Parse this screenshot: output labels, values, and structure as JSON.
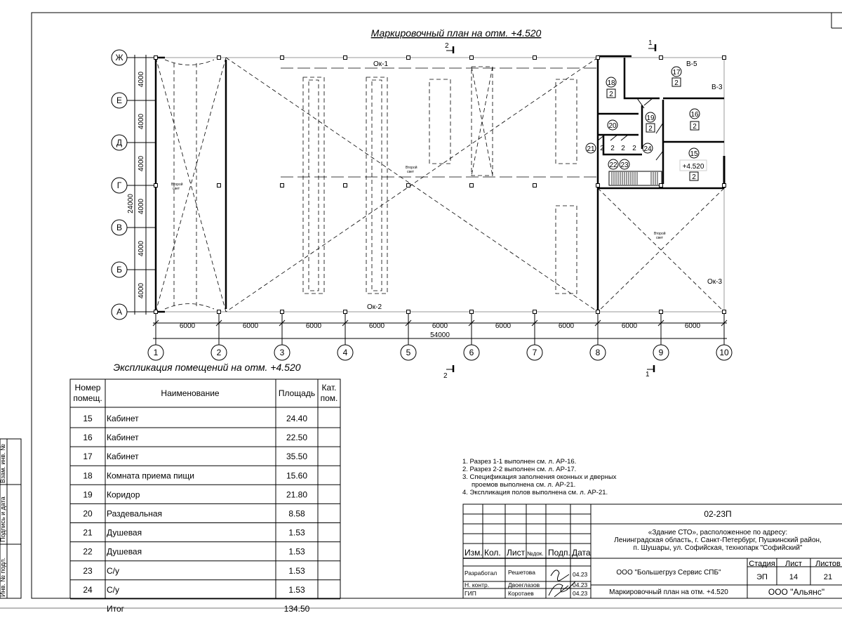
{
  "plan": {
    "title": "Маркировочный план на отм. +4.520",
    "row_axes": [
      "Ж",
      "Е",
      "Д",
      "Г",
      "В",
      "Б",
      "А"
    ],
    "column_axes": [
      "1",
      "2",
      "3",
      "4",
      "5",
      "6",
      "7",
      "8",
      "9",
      "10"
    ],
    "span_dimension": "6000",
    "total_width": "54000",
    "row_dimension": "4000",
    "total_height": "24000",
    "section_marks": [
      "2",
      "1"
    ],
    "labels": {
      "ok1": "Ок-1",
      "ok2": "Ок-2",
      "ok3": "Ок-3",
      "v5": "В-5",
      "v3": "В-3",
      "second_light_line1": "Второй",
      "second_light_line2": "свет",
      "elevation": "+4.520",
      "floor_type": "2"
    },
    "room_numbers": [
      "15",
      "16",
      "17",
      "18",
      "19",
      "20",
      "21",
      "22",
      "23",
      "24"
    ]
  },
  "explication": {
    "title": "Экспликация помещений на отм. +4.520",
    "headers": {
      "number_l1": "Номер",
      "number_l2": "помещ.",
      "name": "Наименование",
      "area": "Площадь",
      "cat_l1": "Кат.",
      "cat_l2": "пом."
    },
    "rows": [
      {
        "number": "15",
        "name": "Кабинет",
        "area": "24.40"
      },
      {
        "number": "16",
        "name": "Кабинет",
        "area": "22.50"
      },
      {
        "number": "17",
        "name": "Кабинет",
        "area": "35.50"
      },
      {
        "number": "18",
        "name": "Комната приема пищи",
        "area": "15.60"
      },
      {
        "number": "19",
        "name": "Коридор",
        "area": "21.80"
      },
      {
        "number": "20",
        "name": "Раздевальная",
        "area": "8.58"
      },
      {
        "number": "21",
        "name": "Душевая",
        "area": "1.53"
      },
      {
        "number": "22",
        "name": "Душевая",
        "area": "1.53"
      },
      {
        "number": "23",
        "name": "С/у",
        "area": "1.53"
      },
      {
        "number": "24",
        "name": "С/у",
        "area": "1.53"
      }
    ],
    "total_label": "Итог",
    "total_area": "134.50"
  },
  "notes": [
    "1. Разрез 1-1 выполнен см. л. АР-16.",
    "2. Разрез 2-2 выполнен см. л. АР-17.",
    "3. Спецификация заполнения оконных и дверных",
    "проемов выполнена см. л. АР-21.",
    "4. Экспликация полов выполнена см. л. АР-21."
  ],
  "title_block": {
    "code": "02-23П",
    "object_l1": "«Здание СТО», расположенное по адресу:",
    "object_l2": "Ленинградская область, г. Санкт-Петербург, Пушкинский район,",
    "object_l3": "п. Шушары, ул. Софийская, технопарк \"Софийский\"",
    "headers": [
      "Изм.",
      "Кол.",
      "Лист",
      "№док.",
      "Подп.",
      "Дата"
    ],
    "designer_role": "Разработал",
    "designer_name": "Решетова",
    "designer_date": "04.23",
    "norm_role": "Н. контр.",
    "norm_name": "Двоеглазов",
    "norm_date": "04.23",
    "chief_role": "ГИП",
    "chief_name": "Коротаев",
    "chief_date": "04.23",
    "company": "ООО \"Большегруз Сервис СПБ\"",
    "stage_label": "Стадия",
    "sheet_label": "Лист",
    "sheets_label": "Листов",
    "stage": "ЭП",
    "sheet": "14",
    "sheets": "21",
    "sheet_title": "Маркировочный план на отм. +4.520",
    "organization": "ООО \"Альянс\""
  },
  "side_stamp": [
    "Взам. инв. №",
    "Подпись и дата",
    "Инв. № подл."
  ]
}
